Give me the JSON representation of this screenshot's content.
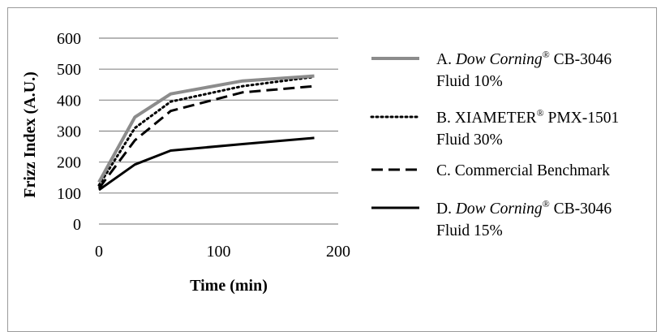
{
  "chart_data": {
    "type": "line",
    "xlabel": "Time (min)",
    "ylabel": "Frizz Index (A.U.)",
    "xlim": [
      0,
      200
    ],
    "ylim": [
      0,
      600
    ],
    "x_ticks": [
      0,
      100,
      200
    ],
    "y_ticks": [
      0,
      100,
      200,
      300,
      400,
      500,
      600
    ],
    "grid": "horizontal",
    "legend_position": "right",
    "series": [
      {
        "name": "A. Dow Corning® CB-3046 Fluid 10%",
        "label_parts": {
          "prefix": "A. ",
          "italic": "Dow Corning",
          "sup": "®",
          "rest": " CB-3046",
          "line2": "Fluid 10%"
        },
        "x": [
          0,
          30,
          60,
          120,
          180
        ],
        "y": [
          135,
          345,
          420,
          462,
          478
        ],
        "color": "#8c8c8c",
        "dash": "solid"
      },
      {
        "name": "B. XIAMETER® PMX-1501 Fluid 30%",
        "label_parts": {
          "prefix": "B. XIAMETER",
          "italic": "",
          "sup": "®",
          "rest": " PMX-1501",
          "line2": "Fluid 30%"
        },
        "x": [
          0,
          30,
          60,
          120,
          180
        ],
        "y": [
          125,
          310,
          395,
          445,
          475
        ],
        "color": "#000000",
        "dash": "dotted"
      },
      {
        "name": "C. Commercial Benchmark",
        "label_parts": {
          "prefix": "C. Commercial Benchmark",
          "italic": "",
          "sup": "",
          "rest": "",
          "line2": ""
        },
        "x": [
          0,
          30,
          60,
          120,
          180
        ],
        "y": [
          115,
          270,
          365,
          425,
          445
        ],
        "color": "#000000",
        "dash": "dashed"
      },
      {
        "name": "D. Dow Corning® CB-3046 Fluid 15%",
        "label_parts": {
          "prefix": "D. ",
          "italic": "Dow Corning",
          "sup": "®",
          "rest": " CB-3046",
          "line2": "Fluid 15%"
        },
        "x": [
          0,
          30,
          60,
          120,
          180
        ],
        "y": [
          110,
          192,
          237,
          258,
          278
        ],
        "color": "#000000",
        "dash": "solid"
      }
    ]
  }
}
